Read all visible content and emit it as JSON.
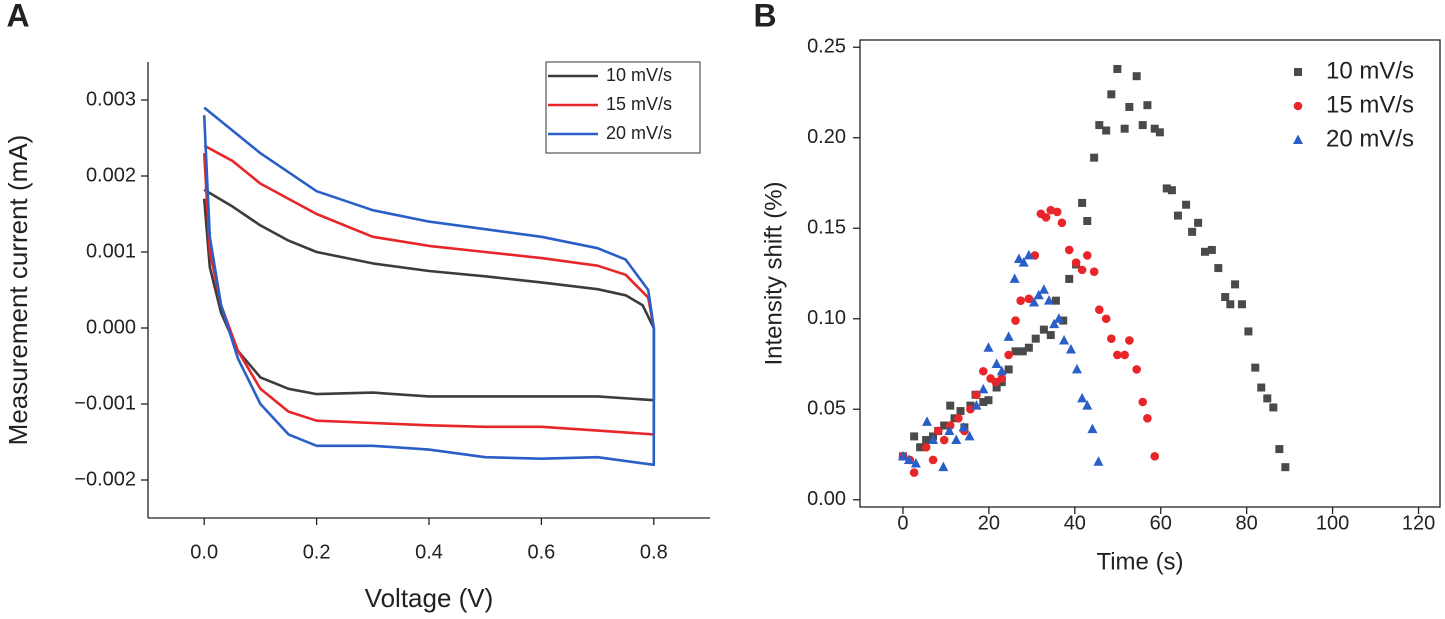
{
  "chart_data": [
    {
      "type": "line",
      "panel_label": "A",
      "x_label": "Voltage (V)",
      "y_label": "Measurement current (mA)",
      "xlim": [
        -0.1,
        0.9
      ],
      "ylim": [
        -0.0025,
        0.0035
      ],
      "xticks": [
        {
          "value": 0,
          "label": "0.0"
        },
        {
          "value": 0.2,
          "label": "0.2"
        },
        {
          "value": 0.4,
          "label": "0.4"
        },
        {
          "value": 0.6,
          "label": "0.6"
        },
        {
          "value": 0.8,
          "label": "0.8"
        }
      ],
      "yticks": [
        {
          "value": -0.002,
          "label": "−0.002"
        },
        {
          "value": -0.001,
          "label": "−0.001"
        },
        {
          "value": 0,
          "label": "0.000"
        },
        0.001,
        0.002,
        0.003
      ],
      "frame": "open",
      "legend": "top-right",
      "legend_box": true,
      "series": [
        {
          "name": "10 mV/s",
          "color": "#3c3c3c",
          "x": [
            0.0,
            0.05,
            0.1,
            0.15,
            0.2,
            0.3,
            0.4,
            0.5,
            0.6,
            0.7,
            0.75,
            0.78,
            0.8,
            0.8,
            0.7,
            0.6,
            0.5,
            0.4,
            0.3,
            0.2,
            0.15,
            0.1,
            0.06,
            0.03,
            0.01,
            0.0
          ],
          "values": [
            0.00182,
            0.0016,
            0.00135,
            0.00115,
            0.001,
            0.00085,
            0.00075,
            0.00068,
            0.0006,
            0.00051,
            0.00043,
            0.0003,
            0,
            -0.00095,
            -0.0009,
            -0.0009,
            -0.0009,
            -0.0009,
            -0.00085,
            -0.00087,
            -0.0008,
            -0.00065,
            -0.0003,
            0.0002,
            0.0008,
            0.0017
          ]
        },
        {
          "name": "15 mV/s",
          "color": "#e8262a",
          "x": [
            0.0,
            0.05,
            0.1,
            0.2,
            0.3,
            0.4,
            0.5,
            0.6,
            0.7,
            0.75,
            0.79,
            0.8,
            0.8,
            0.7,
            0.6,
            0.5,
            0.4,
            0.3,
            0.2,
            0.15,
            0.1,
            0.06,
            0.03,
            0.01,
            0.0
          ],
          "values": [
            0.0024,
            0.0022,
            0.0019,
            0.0015,
            0.0012,
            0.00108,
            0.001,
            0.00092,
            0.00082,
            0.0007,
            0.0004,
            0,
            -0.0014,
            -0.00135,
            -0.0013,
            -0.0013,
            -0.00128,
            -0.00125,
            -0.00122,
            -0.0011,
            -0.0008,
            -0.0003,
            0.0003,
            0.001,
            0.0023
          ]
        },
        {
          "name": "20 mV/s",
          "color": "#2a5fc8",
          "x": [
            0.0,
            0.05,
            0.1,
            0.2,
            0.3,
            0.4,
            0.5,
            0.6,
            0.7,
            0.75,
            0.79,
            0.8,
            0.8,
            0.7,
            0.6,
            0.5,
            0.4,
            0.3,
            0.2,
            0.15,
            0.1,
            0.06,
            0.03,
            0.01,
            0.0
          ],
          "values": [
            0.0029,
            0.0026,
            0.0023,
            0.0018,
            0.00155,
            0.0014,
            0.0013,
            0.0012,
            0.00105,
            0.0009,
            0.0005,
            0,
            -0.0018,
            -0.0017,
            -0.00172,
            -0.0017,
            -0.0016,
            -0.00155,
            -0.00155,
            -0.0014,
            -0.001,
            -0.0004,
            0.0003,
            0.0012,
            0.0028
          ]
        }
      ]
    },
    {
      "type": "scatter",
      "panel_label": "B",
      "x_label": "Time (s)",
      "y_label": "Intensity shift (%)",
      "xlim": [
        -10,
        125
      ],
      "ylim": [
        -0.004,
        0.254
      ],
      "xticks": [
        0,
        20,
        40,
        60,
        80,
        100,
        120
      ],
      "yticks": [
        {
          "value": 0,
          "label": "0.00"
        },
        0.05,
        {
          "value": 0.1,
          "label": "0.10"
        },
        0.15,
        {
          "value": 0.2,
          "label": "0.20"
        },
        0.25
      ],
      "frame": "box",
      "legend": "top-right",
      "legend_box": false,
      "series": [
        {
          "name": "10 mV/s",
          "color": "#4a4a4a",
          "marker": "square",
          "x": [
            0,
            2.6,
            4,
            5.4,
            7,
            8.2,
            9.6,
            11,
            12,
            13.4,
            14.3,
            15.7,
            16.9,
            18.7,
            19.9,
            21.8,
            23,
            24.6,
            26.2,
            27.9,
            29.3,
            30.9,
            32.8,
            34.4,
            35.6,
            37.3,
            38.7,
            40.3,
            41.7,
            42.9,
            44.5,
            45.7,
            47.3,
            48.5,
            49.9,
            51.6,
            52.7,
            54.4,
            55.8,
            56.9,
            58.6,
            59.8,
            61.4,
            62.6,
            64,
            65.9,
            67.3,
            68.7,
            70.3,
            71.9,
            73.4,
            75,
            76.2,
            77.3,
            78.9,
            80.4,
            82,
            83.4,
            84.8,
            86.2,
            87.6,
            89
          ],
          "values": [
            0.024,
            0.035,
            0.029,
            0.033,
            0.035,
            0.038,
            0.041,
            0.052,
            0.045,
            0.049,
            0.04,
            0.052,
            0.058,
            0.054,
            0.055,
            0.062,
            0.065,
            0.072,
            0.082,
            0.082,
            0.084,
            0.089,
            0.094,
            0.091,
            0.11,
            0.099,
            0.122,
            0.13,
            0.164,
            0.154,
            0.189,
            0.207,
            0.204,
            0.224,
            0.238,
            0.205,
            0.217,
            0.234,
            0.207,
            0.218,
            0.205,
            0.203,
            0.172,
            0.171,
            0.157,
            0.163,
            0.148,
            0.153,
            0.137,
            0.138,
            0.128,
            0.112,
            0.108,
            0.119,
            0.108,
            0.093,
            0.073,
            0.062,
            0.056,
            0.051,
            0.028,
            0.018
          ]
        },
        {
          "name": "15 mV/s",
          "color": "#e8262a",
          "marker": "circle",
          "x": [
            0,
            1.6,
            2.6,
            5.4,
            7,
            8.2,
            9.6,
            11,
            12.9,
            14.3,
            15.7,
            17.1,
            18.7,
            20.4,
            21.6,
            23,
            24.6,
            26.2,
            27.4,
            29.3,
            30.7,
            32.1,
            33.3,
            34.4,
            35.9,
            37,
            38.7,
            40.3,
            41.7,
            42.9,
            44.5,
            45.7,
            47.3,
            48.5,
            49.9,
            51.6,
            52.7,
            54.4,
            55.8,
            56.9,
            58.6
          ],
          "values": [
            0.024,
            0.022,
            0.015,
            0.029,
            0.022,
            0.038,
            0.033,
            0.041,
            0.045,
            0.038,
            0.05,
            0.058,
            0.071,
            0.067,
            0.065,
            0.067,
            0.08,
            0.099,
            0.11,
            0.111,
            0.135,
            0.158,
            0.156,
            0.16,
            0.159,
            0.153,
            0.138,
            0.131,
            0.127,
            0.135,
            0.126,
            0.105,
            0.1,
            0.089,
            0.08,
            0.08,
            0.088,
            0.072,
            0.054,
            0.045,
            0.024
          ]
        },
        {
          "name": "20 mV/s",
          "color": "#2a5fc8",
          "marker": "triangle",
          "x": [
            0,
            1.4,
            3,
            5.6,
            7,
            9.4,
            10.8,
            12.4,
            14.1,
            15.5,
            17.1,
            18.7,
            19.9,
            21.8,
            23,
            24.6,
            26,
            27,
            28.1,
            29.3,
            30.5,
            31.6,
            32.8,
            34,
            35.2,
            36.3,
            37.5,
            39.1,
            40.5,
            41.7,
            42.9,
            44.1,
            45.5
          ],
          "values": [
            0.024,
            0.022,
            0.02,
            0.043,
            0.033,
            0.018,
            0.038,
            0.033,
            0.04,
            0.035,
            0.052,
            0.061,
            0.084,
            0.075,
            0.071,
            0.09,
            0.122,
            0.133,
            0.131,
            0.135,
            0.109,
            0.113,
            0.116,
            0.11,
            0.097,
            0.1,
            0.088,
            0.083,
            0.072,
            0.056,
            0.052,
            0.039,
            0.021
          ]
        }
      ]
    }
  ]
}
